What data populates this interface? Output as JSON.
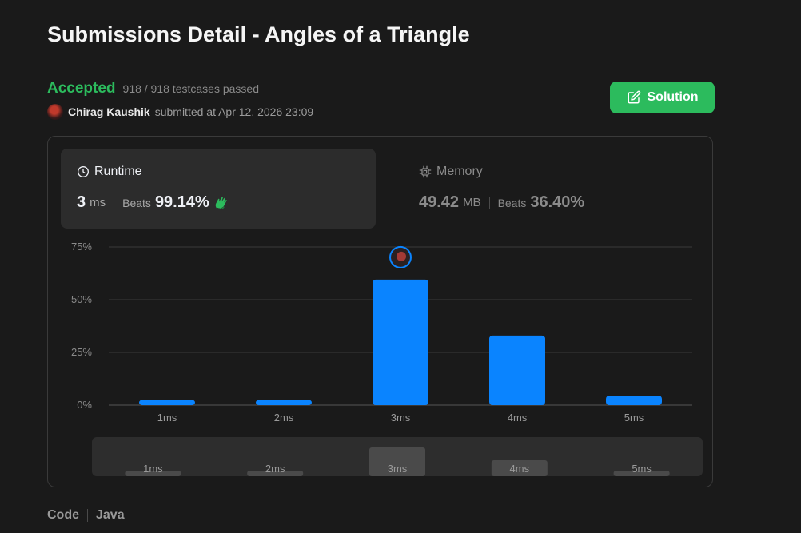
{
  "page": {
    "title": "Submissions Detail - Angles of a Triangle",
    "status": "Accepted",
    "testcases": "918 / 918 testcases passed",
    "username": "Chirag Kaushik",
    "submitted_text": "submitted at Apr 12, 2026 23:09",
    "solution_label": "Solution"
  },
  "runtime": {
    "label": "Runtime",
    "value": "3",
    "unit": "ms",
    "beats_label": "Beats",
    "beats_value": "99.14%"
  },
  "memory": {
    "label": "Memory",
    "value": "49.42",
    "unit": "MB",
    "beats_label": "Beats",
    "beats_value": "36.40%"
  },
  "chart_data": {
    "type": "bar",
    "categories": [
      "1ms",
      "2ms",
      "3ms",
      "4ms",
      "5ms"
    ],
    "values": [
      2.5,
      2.5,
      59.5,
      33,
      4.5
    ],
    "highlight_index": 2,
    "y_ticks": [
      "0%",
      "25%",
      "50%",
      "75%"
    ],
    "y_tick_values": [
      0,
      25,
      50,
      75
    ],
    "ylim": [
      0,
      75
    ],
    "grid": true,
    "bar_color": "#0a84ff"
  },
  "overview": {
    "categories": [
      "1ms",
      "2ms",
      "3ms",
      "4ms",
      "5ms"
    ]
  },
  "code": {
    "label": "Code",
    "language": "Java"
  },
  "colors": {
    "accent_green": "#2cbb5d",
    "bar_blue": "#0a84ff",
    "background": "#1a1a1a"
  }
}
